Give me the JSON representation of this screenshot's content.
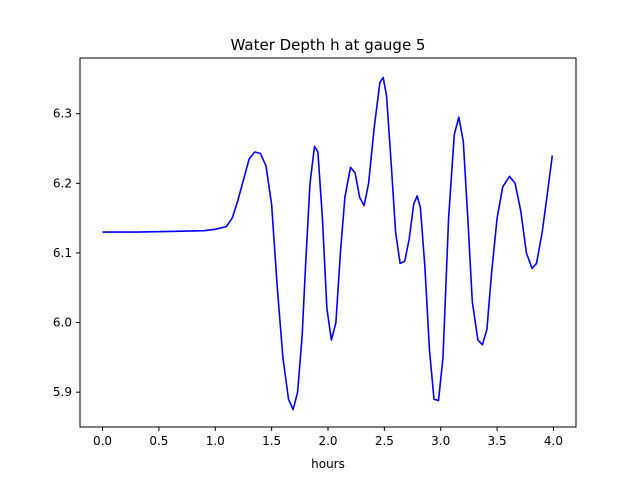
{
  "chart_data": {
    "type": "line",
    "title": "Water Depth h at gauge 5",
    "xlabel": "hours",
    "ylabel": "",
    "xlim": [
      -0.2,
      4.2
    ],
    "ylim": [
      5.85,
      6.38
    ],
    "xticks": [
      0.0,
      0.5,
      1.0,
      1.5,
      2.0,
      2.5,
      3.0,
      3.5,
      4.0
    ],
    "xtick_labels": [
      "0.0",
      "0.5",
      "1.0",
      "1.5",
      "2.0",
      "2.5",
      "3.0",
      "3.5",
      "4.0"
    ],
    "yticks": [
      5.9,
      6.0,
      6.1,
      6.2,
      6.3
    ],
    "ytick_labels": [
      "5.9",
      "6.0",
      "6.1",
      "6.2",
      "6.3"
    ],
    "grid": false,
    "legend": false,
    "series": [
      {
        "color": "#0000ff",
        "points": [
          [
            0.0,
            6.13
          ],
          [
            0.3,
            6.13
          ],
          [
            0.6,
            6.131
          ],
          [
            0.9,
            6.132
          ],
          [
            1.0,
            6.134
          ],
          [
            1.1,
            6.138
          ],
          [
            1.15,
            6.15
          ],
          [
            1.2,
            6.175
          ],
          [
            1.25,
            6.205
          ],
          [
            1.3,
            6.235
          ],
          [
            1.35,
            6.245
          ],
          [
            1.4,
            6.243
          ],
          [
            1.45,
            6.225
          ],
          [
            1.5,
            6.17
          ],
          [
            1.55,
            6.05
          ],
          [
            1.6,
            5.95
          ],
          [
            1.65,
            5.89
          ],
          [
            1.69,
            5.875
          ],
          [
            1.73,
            5.9
          ],
          [
            1.77,
            5.98
          ],
          [
            1.8,
            6.08
          ],
          [
            1.84,
            6.2
          ],
          [
            1.88,
            6.253
          ],
          [
            1.91,
            6.245
          ],
          [
            1.95,
            6.15
          ],
          [
            1.99,
            6.02
          ],
          [
            2.03,
            5.975
          ],
          [
            2.07,
            6.0
          ],
          [
            2.11,
            6.1
          ],
          [
            2.15,
            6.18
          ],
          [
            2.2,
            6.223
          ],
          [
            2.24,
            6.215
          ],
          [
            2.28,
            6.18
          ],
          [
            2.32,
            6.168
          ],
          [
            2.36,
            6.2
          ],
          [
            2.41,
            6.28
          ],
          [
            2.46,
            6.345
          ],
          [
            2.49,
            6.352
          ],
          [
            2.52,
            6.325
          ],
          [
            2.56,
            6.23
          ],
          [
            2.6,
            6.13
          ],
          [
            2.64,
            6.085
          ],
          [
            2.68,
            6.088
          ],
          [
            2.72,
            6.12
          ],
          [
            2.76,
            6.17
          ],
          [
            2.79,
            6.182
          ],
          [
            2.82,
            6.165
          ],
          [
            2.86,
            6.08
          ],
          [
            2.9,
            5.96
          ],
          [
            2.94,
            5.89
          ],
          [
            2.98,
            5.888
          ],
          [
            3.02,
            5.95
          ],
          [
            3.07,
            6.15
          ],
          [
            3.12,
            6.27
          ],
          [
            3.16,
            6.295
          ],
          [
            3.2,
            6.26
          ],
          [
            3.24,
            6.15
          ],
          [
            3.28,
            6.03
          ],
          [
            3.33,
            5.975
          ],
          [
            3.37,
            5.968
          ],
          [
            3.41,
            5.99
          ],
          [
            3.45,
            6.07
          ],
          [
            3.5,
            6.15
          ],
          [
            3.55,
            6.195
          ],
          [
            3.61,
            6.21
          ],
          [
            3.66,
            6.2
          ],
          [
            3.71,
            6.16
          ],
          [
            3.76,
            6.1
          ],
          [
            3.81,
            6.078
          ],
          [
            3.85,
            6.085
          ],
          [
            3.9,
            6.13
          ],
          [
            3.95,
            6.19
          ],
          [
            3.99,
            6.24
          ]
        ]
      }
    ]
  }
}
